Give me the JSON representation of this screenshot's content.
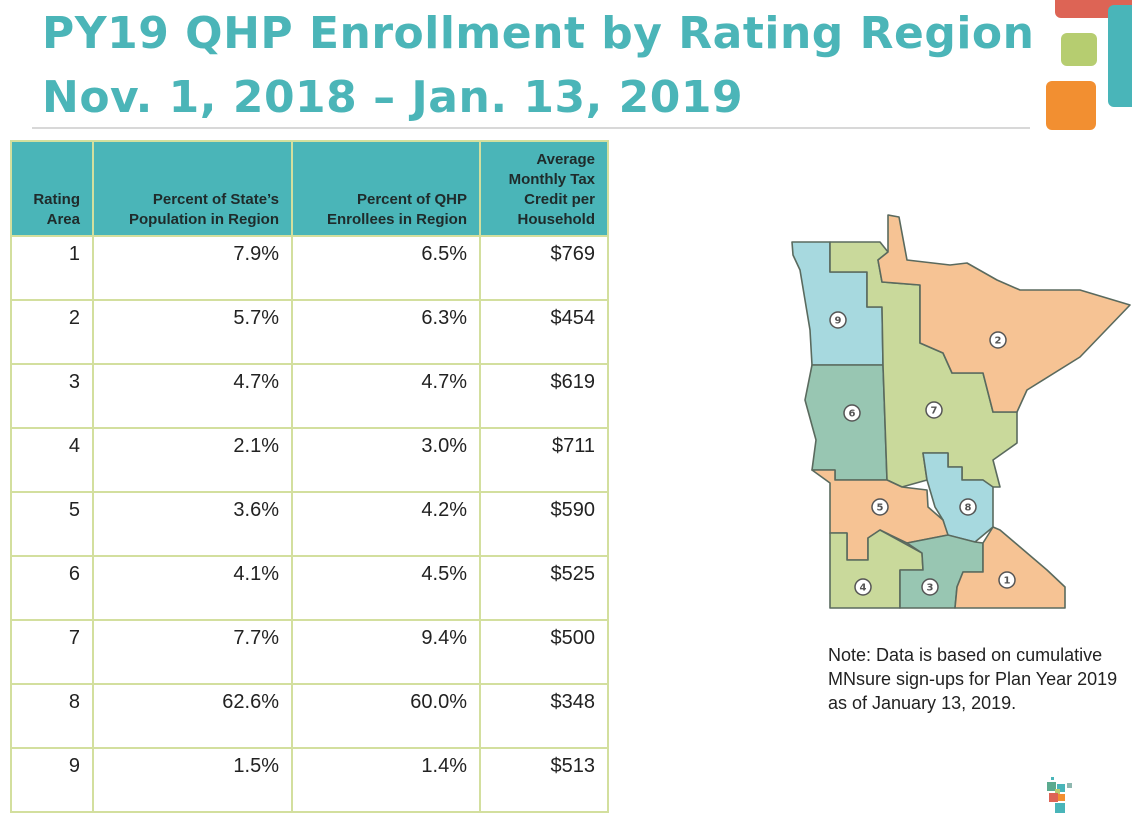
{
  "title": {
    "line1": "PY19 QHP Enrollment by Rating Region",
    "line2": "Nov. 1, 2018 – Jan. 13, 2019"
  },
  "table": {
    "headers": [
      "Rating Area",
      "Percent of State’s Population in Region",
      "Percent of QHP Enrollees in Region",
      "Average Monthly Tax Credit per Household"
    ],
    "rows": [
      [
        "1",
        "7.9%",
        "6.5%",
        "$769"
      ],
      [
        "2",
        "5.7%",
        "6.3%",
        "$454"
      ],
      [
        "3",
        "4.7%",
        "4.7%",
        "$619"
      ],
      [
        "4",
        "2.1%",
        "3.0%",
        "$711"
      ],
      [
        "5",
        "3.6%",
        "4.2%",
        "$590"
      ],
      [
        "6",
        "4.1%",
        "4.5%",
        "$525"
      ],
      [
        "7",
        "7.7%",
        "9.4%",
        "$500"
      ],
      [
        "8",
        "62.6%",
        "60.0%",
        "$348"
      ],
      [
        "9",
        "1.5%",
        "1.4%",
        "$513"
      ]
    ]
  },
  "map": {
    "region_labels": [
      "1",
      "2",
      "3",
      "4",
      "5",
      "6",
      "7",
      "8",
      "9"
    ],
    "colors": {
      "orange": "#f6c394",
      "green": "#c9d99b",
      "blue": "#a7d9df",
      "teal": "#98c6b2",
      "header": "#4ab5b8"
    }
  },
  "note": "Note:  Data is based on cumulative MNsure sign-ups for Plan Year 2019 as of January 13, 2019."
}
